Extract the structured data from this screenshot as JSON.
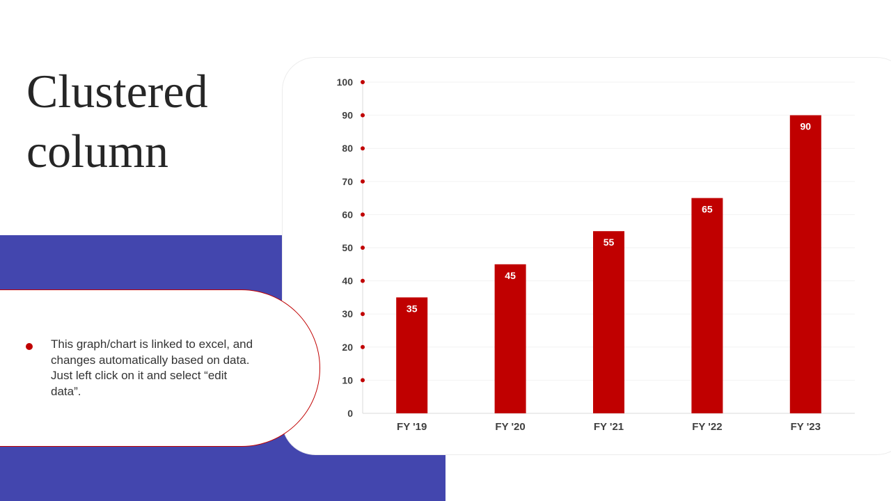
{
  "title_line1": "Clustered",
  "title_line2": "column",
  "note": {
    "text": "This graph/chart is linked to excel, and changes automatically based on data. Just left click on it and select “edit data”."
  },
  "colors": {
    "accent": "#C00000",
    "blue_block": "#4346AE",
    "card_border": "#ececec"
  },
  "chart_data": {
    "type": "bar",
    "categories": [
      "FY '19",
      "FY '20",
      "FY '21",
      "FY '22",
      "FY '23"
    ],
    "series": [
      {
        "values": [
          35,
          45,
          55,
          65,
          90
        ]
      }
    ],
    "data_labels": [
      "35",
      "45",
      "55",
      "65",
      "90"
    ],
    "yticks": [
      "0",
      "10",
      "20",
      "30",
      "40",
      "50",
      "60",
      "70",
      "80",
      "90",
      "100"
    ],
    "ylim": [
      0,
      100
    ],
    "title": "",
    "xlabel": "",
    "ylabel": "",
    "grid": true,
    "legend": "none"
  }
}
